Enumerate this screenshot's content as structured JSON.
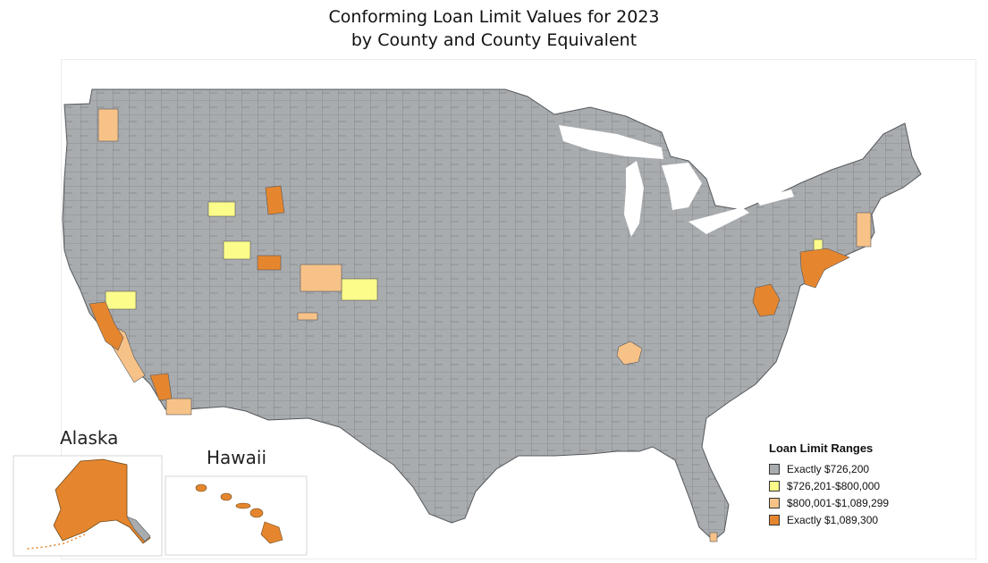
{
  "title": {
    "line1": "Conforming Loan Limit Values for 2023",
    "line2": "by County and County Equivalent"
  },
  "insets": {
    "alaska_label": "Alaska",
    "hawaii_label": "Hawaii"
  },
  "legend": {
    "title": "Loan Limit Ranges",
    "items": [
      {
        "label": "Exactly $726,200",
        "color": "#a9acaf"
      },
      {
        "label": "$726,201-$800,000",
        "color": "#fbfc8a"
      },
      {
        "label": "$800,001-$1,089,299",
        "color": "#f7c288"
      },
      {
        "label": "Exactly $1,089,300",
        "color": "#e5862e"
      }
    ]
  }
}
